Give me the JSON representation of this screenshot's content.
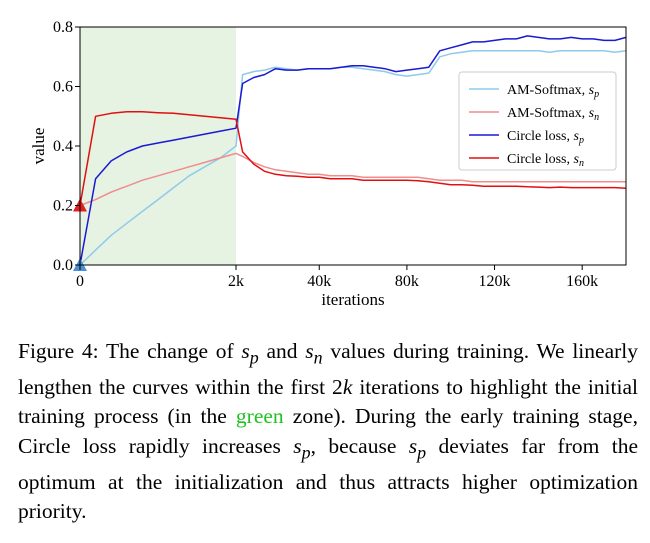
{
  "chart_data": {
    "type": "line",
    "xlabel": "iterations",
    "ylabel": "value",
    "x_ticks": [
      "0",
      "2k",
      "40k",
      "80k",
      "120k",
      "160k"
    ],
    "y_ticks": [
      "0.0",
      "0.2",
      "0.4",
      "0.6",
      "0.8"
    ],
    "ylim": [
      0,
      0.8
    ],
    "green_zone_iterations": [
      0,
      2000
    ],
    "legend": [
      "AM-Softmax, s_p",
      "AM-Softmax, s_n",
      "Circle loss, s_p",
      "Circle loss, s_n"
    ],
    "start_markers": [
      {
        "series": "s_p",
        "value": 0.0,
        "color": "#4a90d9"
      },
      {
        "series": "s_n",
        "value": 0.2,
        "color": "#e02020"
      }
    ],
    "series": [
      {
        "name": "AM-Softmax, s_p",
        "color": "#8ecbea",
        "x": [
          0,
          200,
          400,
          600,
          800,
          1000,
          1200,
          1400,
          1600,
          1800,
          2000,
          5000,
          10000,
          15000,
          20000,
          25000,
          30000,
          35000,
          40000,
          45000,
          50000,
          55000,
          60000,
          65000,
          70000,
          75000,
          80000,
          85000,
          90000,
          95000,
          100000,
          105000,
          110000,
          115000,
          120000,
          125000,
          130000,
          135000,
          140000,
          145000,
          150000,
          155000,
          160000,
          165000,
          170000,
          175000,
          180000
        ],
        "y": [
          0.0,
          0.05,
          0.1,
          0.14,
          0.18,
          0.22,
          0.26,
          0.3,
          0.33,
          0.36,
          0.4,
          0.64,
          0.65,
          0.655,
          0.665,
          0.66,
          0.655,
          0.66,
          0.66,
          0.66,
          0.665,
          0.665,
          0.66,
          0.655,
          0.65,
          0.64,
          0.635,
          0.64,
          0.645,
          0.7,
          0.71,
          0.715,
          0.72,
          0.72,
          0.72,
          0.72,
          0.72,
          0.72,
          0.72,
          0.715,
          0.72,
          0.72,
          0.72,
          0.72,
          0.72,
          0.715,
          0.72
        ]
      },
      {
        "name": "AM-Softmax, s_n",
        "color": "#f08c8c",
        "x": [
          0,
          200,
          400,
          600,
          800,
          1000,
          1200,
          1400,
          1600,
          1800,
          2000,
          5000,
          10000,
          15000,
          20000,
          25000,
          30000,
          35000,
          40000,
          45000,
          50000,
          55000,
          60000,
          65000,
          70000,
          75000,
          80000,
          85000,
          90000,
          95000,
          100000,
          105000,
          110000,
          115000,
          120000,
          125000,
          130000,
          135000,
          140000,
          145000,
          150000,
          155000,
          160000,
          165000,
          170000,
          175000,
          180000
        ],
        "y": [
          0.2,
          0.22,
          0.245,
          0.265,
          0.285,
          0.3,
          0.315,
          0.33,
          0.345,
          0.36,
          0.375,
          0.365,
          0.345,
          0.33,
          0.32,
          0.315,
          0.31,
          0.305,
          0.305,
          0.3,
          0.3,
          0.3,
          0.295,
          0.295,
          0.295,
          0.295,
          0.295,
          0.295,
          0.29,
          0.285,
          0.285,
          0.285,
          0.28,
          0.28,
          0.28,
          0.28,
          0.28,
          0.28,
          0.28,
          0.28,
          0.28,
          0.28,
          0.28,
          0.28,
          0.28,
          0.28,
          0.28
        ]
      },
      {
        "name": "Circle loss, s_p",
        "color": "#1a1ad2",
        "x": [
          0,
          200,
          400,
          600,
          800,
          1000,
          1200,
          1400,
          1600,
          1800,
          2000,
          5000,
          10000,
          15000,
          20000,
          25000,
          30000,
          35000,
          40000,
          45000,
          50000,
          55000,
          60000,
          65000,
          70000,
          75000,
          80000,
          85000,
          90000,
          95000,
          100000,
          105000,
          110000,
          115000,
          120000,
          125000,
          130000,
          135000,
          140000,
          145000,
          150000,
          155000,
          160000,
          165000,
          170000,
          175000,
          180000
        ],
        "y": [
          0.0,
          0.29,
          0.35,
          0.38,
          0.4,
          0.41,
          0.42,
          0.43,
          0.44,
          0.45,
          0.46,
          0.61,
          0.63,
          0.64,
          0.66,
          0.655,
          0.655,
          0.66,
          0.66,
          0.66,
          0.665,
          0.67,
          0.67,
          0.665,
          0.66,
          0.65,
          0.655,
          0.66,
          0.665,
          0.72,
          0.73,
          0.74,
          0.75,
          0.75,
          0.755,
          0.76,
          0.76,
          0.77,
          0.765,
          0.76,
          0.76,
          0.765,
          0.76,
          0.76,
          0.755,
          0.755,
          0.765
        ]
      },
      {
        "name": "Circle loss, s_n",
        "color": "#e01010",
        "x": [
          0,
          200,
          400,
          600,
          800,
          1000,
          1200,
          1400,
          1600,
          1800,
          2000,
          5000,
          10000,
          15000,
          20000,
          25000,
          30000,
          35000,
          40000,
          45000,
          50000,
          55000,
          60000,
          65000,
          70000,
          75000,
          80000,
          85000,
          90000,
          95000,
          100000,
          105000,
          110000,
          115000,
          120000,
          125000,
          130000,
          135000,
          140000,
          145000,
          150000,
          155000,
          160000,
          165000,
          170000,
          175000,
          180000
        ],
        "y": [
          0.2,
          0.5,
          0.51,
          0.515,
          0.515,
          0.512,
          0.51,
          0.505,
          0.5,
          0.495,
          0.49,
          0.38,
          0.34,
          0.315,
          0.305,
          0.3,
          0.298,
          0.295,
          0.295,
          0.29,
          0.29,
          0.29,
          0.285,
          0.285,
          0.285,
          0.285,
          0.285,
          0.283,
          0.28,
          0.275,
          0.27,
          0.27,
          0.268,
          0.265,
          0.265,
          0.265,
          0.265,
          0.263,
          0.262,
          0.26,
          0.262,
          0.26,
          0.26,
          0.26,
          0.26,
          0.26,
          0.258
        ]
      }
    ]
  },
  "caption": {
    "t1": "Figure 4: The change of ",
    "sp": "s",
    "sp_sub": "p",
    "t2": " and ",
    "sn": "s",
    "sn_sub": "n",
    "t3": " values during training. We linearly lengthen the curves within the first 2",
    "k": "k",
    "t4": " iterations to highlight the initial training process (in the ",
    "green": "green",
    "t5": " zone). During the early training stage, Circle loss rapidly increases ",
    "sp2": "s",
    "sp2_sub": "p",
    "t6": ", because ",
    "sp3": "s",
    "sp3_sub": "p",
    "t7": " deviates far from the optimum at the initialization and thus attracts higher optimization priority."
  }
}
